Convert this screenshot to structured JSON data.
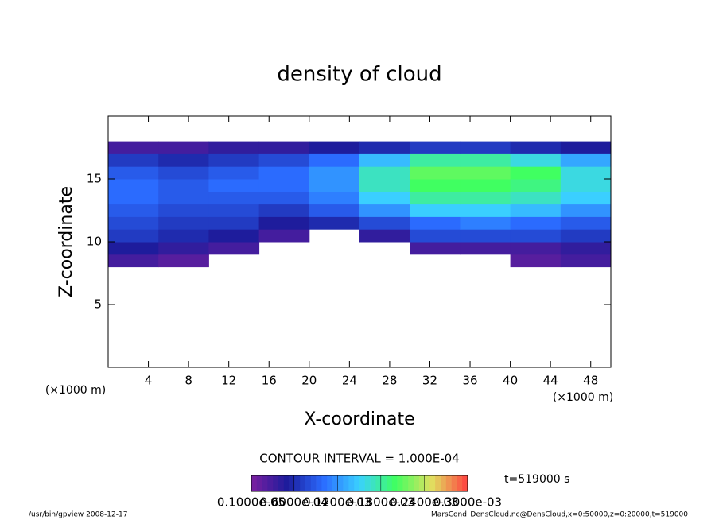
{
  "chart_data": {
    "type": "heatmap",
    "title": "density of cloud",
    "x_label": "X-coordinate",
    "y_label": "Z-coordinate",
    "x_unit_label": "(×1000 m)",
    "y_unit_label": "(×1000 m)",
    "xlim": [
      0,
      50
    ],
    "ylim": [
      0,
      20
    ],
    "xticks": [
      4,
      8,
      12,
      16,
      20,
      24,
      28,
      32,
      36,
      40,
      44,
      48
    ],
    "yticks": [
      5,
      10,
      15
    ],
    "x": [
      2.5,
      7.5,
      12.5,
      17.5,
      22.5,
      27.5,
      32.5,
      37.5,
      42.5,
      47.5
    ],
    "y": [
      8.5,
      9.5,
      10.5,
      11.5,
      12.5,
      13.5,
      14.5,
      15.5,
      16.5,
      17.5
    ],
    "values": [
      [
        3e-05,
        2e-05,
        null,
        null,
        null,
        null,
        null,
        null,
        2e-05,
        3e-05
      ],
      [
        5e-05,
        4e-05,
        3e-05,
        null,
        null,
        null,
        3e-05,
        3e-05,
        3e-05,
        4e-05
      ],
      [
        7e-05,
        6e-05,
        5e-05,
        3e-05,
        null,
        4e-05,
        8e-05,
        8e-05,
        8e-05,
        7e-05
      ],
      [
        8e-05,
        7e-05,
        7e-05,
        5e-05,
        6e-05,
        8e-05,
        0.0001,
        0.00011,
        0.0001,
        9e-05
      ],
      [
        9e-05,
        8e-05,
        8e-05,
        7e-05,
        9e-05,
        0.00012,
        0.00015,
        0.00015,
        0.00014,
        0.00012
      ],
      [
        0.0001,
        9e-05,
        9e-05,
        9e-05,
        0.00011,
        0.00015,
        0.00018,
        0.00018,
        0.00017,
        0.00015
      ],
      [
        0.0001,
        9e-05,
        0.0001,
        0.0001,
        0.00012,
        0.00017,
        0.0002,
        0.0002,
        0.00019,
        0.00016
      ],
      [
        9e-05,
        8e-05,
        9e-05,
        0.0001,
        0.00012,
        0.00017,
        0.00021,
        0.00021,
        0.0002,
        0.00016
      ],
      [
        7e-05,
        6e-05,
        7e-05,
        8e-05,
        0.0001,
        0.00014,
        0.00018,
        0.00018,
        0.00016,
        0.00013
      ],
      [
        3e-05,
        3e-05,
        4e-05,
        4e-05,
        5e-05,
        6e-05,
        7e-05,
        7e-05,
        6e-05,
        5e-05
      ]
    ],
    "colors": [
      "#7b1fa0",
      "#1c1c9c",
      "#2b6cff",
      "#3ad0ff",
      "#40ff60",
      "#e0e060",
      "#ff4040"
    ],
    "contour_interval": "CONTOUR INTERVAL = 1.000E-04",
    "colorbar_ticks": [
      {
        "value": 1e-06,
        "label": "0.1000e-05"
      },
      {
        "value": 6e-05,
        "label": "0.6000e-04"
      },
      {
        "value": 0.00012,
        "label": "0.1200e-03"
      },
      {
        "value": 0.00018,
        "label": "0.1800e-03"
      },
      {
        "value": 0.00024,
        "label": "0.2400e-03"
      },
      {
        "value": 0.0003,
        "label": "0.3000e-03"
      }
    ],
    "time_label": "t=519000 s",
    "footer_left": "/usr/bin/gpview  2008-12-17",
    "footer_right": "MarsCond_DensCloud.nc@DensCloud,x=0:50000,z=0:20000,t=519000"
  }
}
